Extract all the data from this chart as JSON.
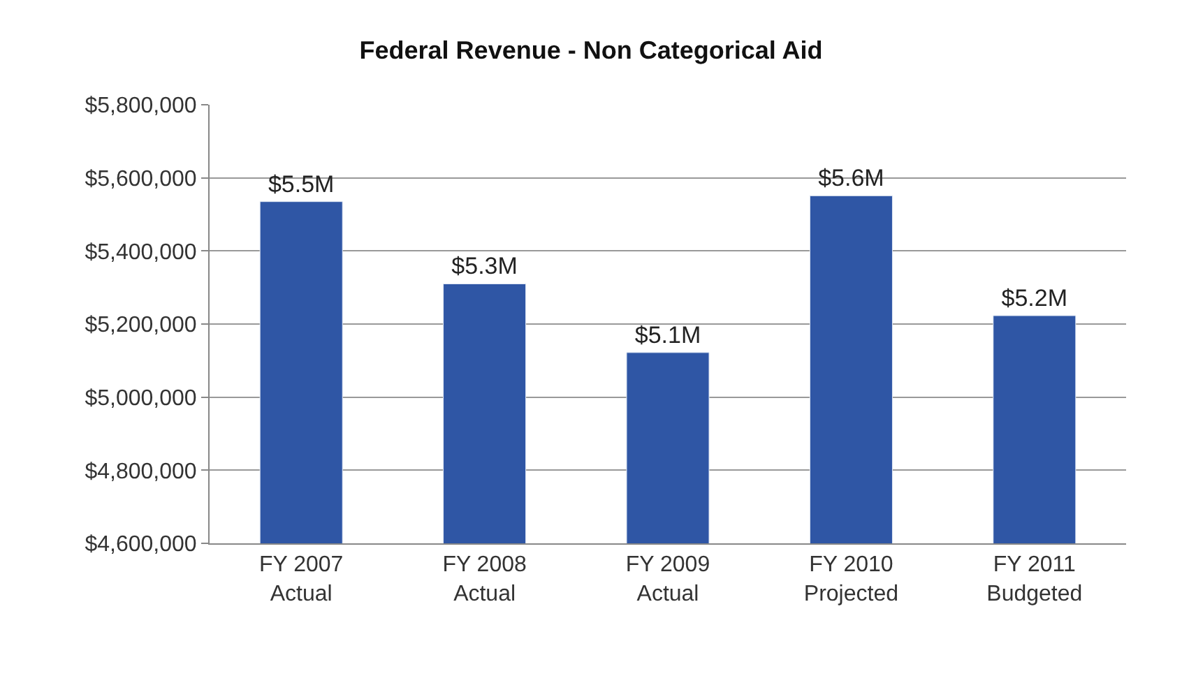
{
  "chart_data": {
    "type": "bar",
    "title": "Federal Revenue - Non Categorical Aid",
    "categories": [
      "FY 2007\nActual",
      "FY 2008\nActual",
      "FY 2009\nActual",
      "FY 2010\nProjected",
      "FY 2011\nBudgeted"
    ],
    "values": [
      5535000,
      5310000,
      5122000,
      5551000,
      5223000
    ],
    "value_labels": [
      "$5.5M",
      "$5.3M",
      "$5.1M",
      "$5.6M",
      "$5.2M"
    ],
    "color": "#2f56a5",
    "ylim": [
      4600000,
      5800000
    ],
    "yticks": [
      {
        "value": 4600000,
        "label": "$4,600,000"
      },
      {
        "value": 4800000,
        "label": "$4,800,000"
      },
      {
        "value": 5000000,
        "label": "$5,000,000"
      },
      {
        "value": 5200000,
        "label": "$5,200,000"
      },
      {
        "value": 5400000,
        "label": "$5,400,000"
      },
      {
        "value": 5600000,
        "label": "$5,600,000"
      },
      {
        "value": 5800000,
        "label": "$5,800,000"
      }
    ],
    "grid": "y"
  }
}
